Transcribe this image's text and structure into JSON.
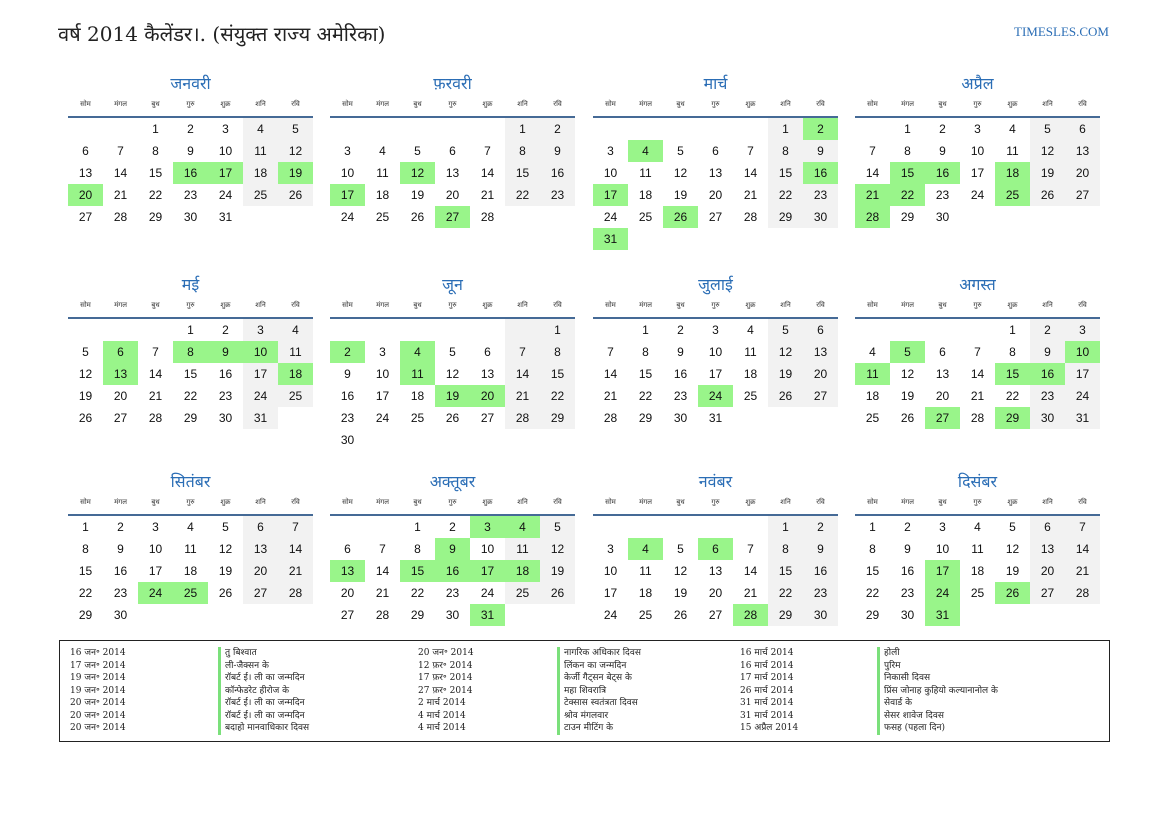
{
  "header": {
    "title": "वर्ष 2014 कैलेंडर।. (संयुक्त राज्य अमेरिका)",
    "site": "TIMESLES.COM"
  },
  "weekdays": [
    "सोम",
    "मंगल",
    "बुध",
    "गुरु",
    "शुक्र",
    "शनि",
    "रवि"
  ],
  "months": [
    {
      "name": "जनवरी",
      "days": 31,
      "first_weekday": 2,
      "highlights": [
        16,
        17,
        19,
        20
      ]
    },
    {
      "name": "फ़रवरी",
      "days": 28,
      "first_weekday": 5,
      "highlights": [
        12,
        17,
        27
      ]
    },
    {
      "name": "मार्च",
      "days": 31,
      "first_weekday": 5,
      "highlights": [
        2,
        4,
        16,
        17,
        26,
        31
      ]
    },
    {
      "name": "अप्रैल",
      "days": 30,
      "first_weekday": 1,
      "highlights": [
        15,
        16,
        18,
        21,
        22,
        25,
        28
      ]
    },
    {
      "name": "मई",
      "days": 31,
      "first_weekday": 3,
      "highlights": [
        6,
        8,
        9,
        10,
        13,
        18
      ]
    },
    {
      "name": "जून",
      "days": 30,
      "first_weekday": 6,
      "highlights": [
        2,
        4,
        11,
        19,
        20
      ]
    },
    {
      "name": "जुलाई",
      "days": 31,
      "first_weekday": 1,
      "highlights": [
        24
      ]
    },
    {
      "name": "अगस्त",
      "days": 31,
      "first_weekday": 4,
      "highlights": [
        5,
        10,
        11,
        15,
        16,
        27,
        29
      ]
    },
    {
      "name": "सितंबर",
      "days": 30,
      "first_weekday": 0,
      "highlights": [
        24,
        25
      ]
    },
    {
      "name": "अक्तूबर",
      "days": 31,
      "first_weekday": 2,
      "highlights": [
        3,
        4,
        9,
        13,
        15,
        16,
        17,
        18,
        31
      ]
    },
    {
      "name": "नवंबर",
      "days": 30,
      "first_weekday": 5,
      "highlights": [
        4,
        6,
        28
      ]
    },
    {
      "name": "दिसंबर",
      "days": 31,
      "first_weekday": 0,
      "highlights": [
        17,
        24,
        26,
        31
      ]
    }
  ],
  "holidays": [
    {
      "date": "16 जन॰ 2014",
      "name": "तु बिश्वात"
    },
    {
      "date": "17 जन॰ 2014",
      "name": "ली-जैक्सन के"
    },
    {
      "date": "19 जन॰ 2014",
      "name": "रॉबर्ट ई। ली का जन्मदिन"
    },
    {
      "date": "19 जन॰ 2014",
      "name": "कॉन्फेडरेट हीरोज के"
    },
    {
      "date": "20 जन॰ 2014",
      "name": "रॉबर्ट ई। ली का जन्मदिन"
    },
    {
      "date": "20 जन॰ 2014",
      "name": "रॉबर्ट ई। ली का जन्मदिन"
    },
    {
      "date": "20 जन॰ 2014",
      "name": "बदाहो मानवाधिकार दिवस"
    },
    {
      "date": "20 जन॰ 2014",
      "name": "नागरिक अधिकार दिवस"
    },
    {
      "date": "12 फ़र॰ 2014",
      "name": "लिंकन का जन्मदिन"
    },
    {
      "date": "17 फ़र॰ 2014",
      "name": "केर्जी गैट्सन बेट्स के"
    },
    {
      "date": "27 फ़र॰ 2014",
      "name": "महा शिवरात्रि"
    },
    {
      "date": "2 मार्च 2014",
      "name": "टेक्सास स्वतंत्रता दिवस"
    },
    {
      "date": "4 मार्च 2014",
      "name": "श्रोव मंगलवार"
    },
    {
      "date": "4 मार्च 2014",
      "name": "टाउन मीटिंग के"
    },
    {
      "date": "16 मार्च 2014",
      "name": "होली"
    },
    {
      "date": "16 मार्च 2014",
      "name": "पुरिम"
    },
    {
      "date": "17 मार्च 2014",
      "name": "निकासी दिवस"
    },
    {
      "date": "26 मार्च 2014",
      "name": "प्रिंस जोनाह कुहियो कल्यानानोल के"
    },
    {
      "date": "31 मार्च 2014",
      "name": "सेवार्ड के"
    },
    {
      "date": "31 मार्च 2014",
      "name": "सेसर शावेज दिवस"
    },
    {
      "date": "15 अप्रैल 2014",
      "name": "फसह (पहला दिन)"
    }
  ]
}
